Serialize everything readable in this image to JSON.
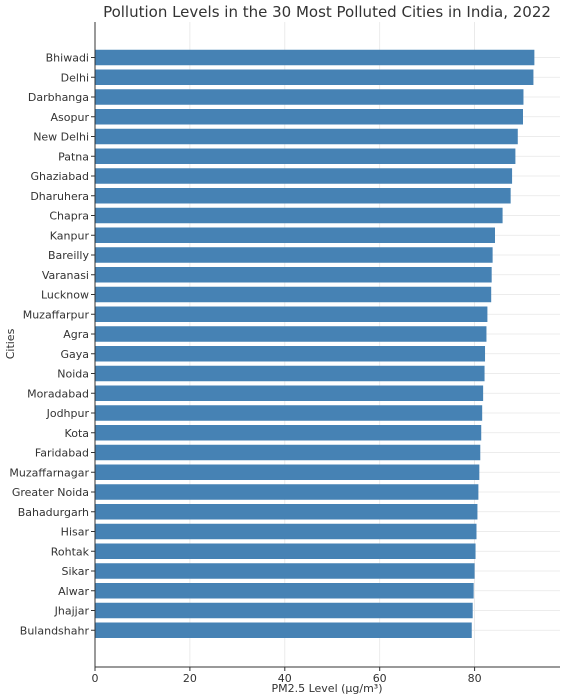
{
  "chart_data": {
    "type": "bar",
    "orientation": "horizontal",
    "title": "Pollution Levels in the 30 Most Polluted Cities in India, 2022",
    "xlabel": "PM2.5 Level (µg/m³)",
    "ylabel": "Cities",
    "xlim": [
      0,
      98
    ],
    "xticks": [
      0,
      20,
      40,
      60,
      80
    ],
    "grid": true,
    "bar_color": "#4682b4",
    "categories": [
      "Bhiwadi",
      "Delhi",
      "Darbhanga",
      "Asopur",
      "New Delhi",
      "Patna",
      "Ghaziabad",
      "Dharuhera",
      "Chapra",
      "Kanpur",
      "Bareilly",
      "Varanasi",
      "Lucknow",
      "Muzaffarpur",
      "Agra",
      "Gaya",
      "Noida",
      "Moradabad",
      "Jodhpur",
      "Kota",
      "Faridabad",
      "Muzaffarnagar",
      "Greater Noida",
      "Bahadurgarh",
      "Hisar",
      "Rohtak",
      "Sikar",
      "Alwar",
      "Jhajjar",
      "Bulandshahr"
    ],
    "values": [
      92.6,
      92.4,
      90.3,
      90.2,
      89.1,
      88.6,
      87.9,
      87.6,
      85.9,
      84.3,
      83.8,
      83.6,
      83.5,
      82.7,
      82.5,
      82.2,
      82.1,
      81.8,
      81.6,
      81.4,
      81.2,
      81.0,
      80.8,
      80.6,
      80.4,
      80.2,
      80.0,
      79.8,
      79.6,
      79.4
    ]
  }
}
